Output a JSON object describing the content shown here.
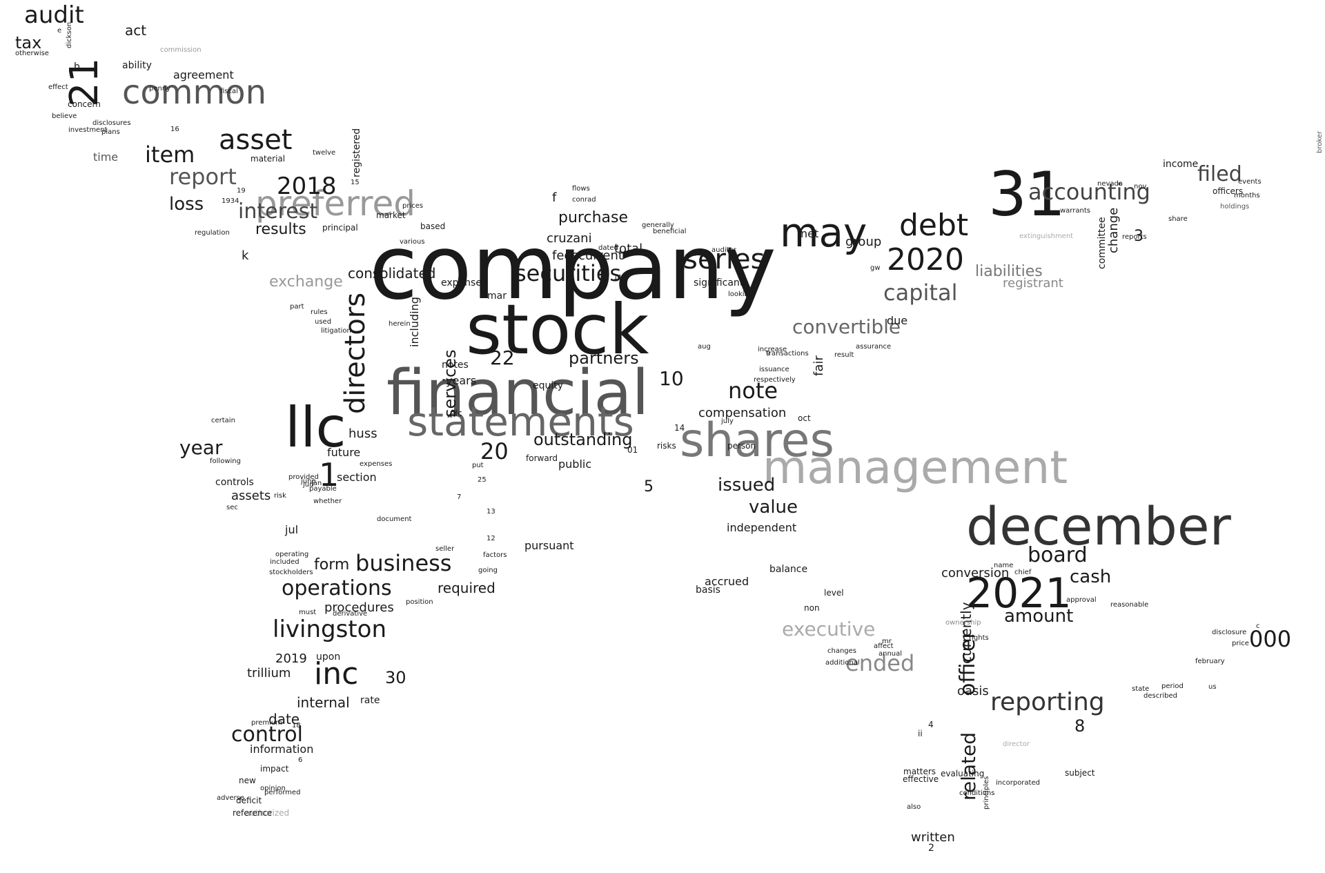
{
  "words": [
    {
      "text": "company",
      "color": "#1a1a1a"
    },
    {
      "text": "stock",
      "color": "#1a1a1a"
    },
    {
      "text": "financial",
      "color": "#555555"
    },
    {
      "text": "statements",
      "color": "#666666"
    },
    {
      "text": "shares",
      "color": "#777777"
    },
    {
      "text": "management",
      "color": "#aaaaaa"
    },
    {
      "text": "december",
      "color": "#333333"
    },
    {
      "text": "llc",
      "color": "#1a1a1a"
    },
    {
      "text": "31",
      "color": "#1a1a1a"
    },
    {
      "text": "21",
      "color": "#1a1a1a"
    },
    {
      "text": "2021",
      "color": "#1a1a1a"
    },
    {
      "text": "may",
      "color": "#1a1a1a"
    },
    {
      "text": "preferred",
      "color": "#999999"
    },
    {
      "text": "common",
      "color": "#555555"
    },
    {
      "text": "directors",
      "color": "#1a1a1a"
    },
    {
      "text": "debt",
      "color": "#1a1a1a"
    },
    {
      "text": "2020",
      "color": "#1a1a1a"
    },
    {
      "text": "series",
      "color": "#1a1a1a"
    },
    {
      "text": "securities",
      "color": "#1a1a1a"
    },
    {
      "text": "inc",
      "color": "#1a1a1a"
    },
    {
      "text": "livingston",
      "color": "#1a1a1a"
    },
    {
      "text": "asset",
      "color": "#1a1a1a"
    },
    {
      "text": "accounting",
      "color": "#444444"
    },
    {
      "text": "note",
      "color": "#1a1a1a"
    },
    {
      "text": "business",
      "color": "#1a1a1a"
    },
    {
      "text": "operations",
      "color": "#1a1a1a"
    },
    {
      "text": "reporting",
      "color": "#333333"
    },
    {
      "text": "capital",
      "color": "#555555"
    },
    {
      "text": "convertible",
      "color": "#666666"
    },
    {
      "text": "executive",
      "color": "#aaaaaa"
    },
    {
      "text": "ended",
      "color": "#888888"
    },
    {
      "text": "control",
      "color": "#1a1a1a"
    },
    {
      "text": "item",
      "color": "#1a1a1a"
    },
    {
      "text": "report",
      "color": "#555555"
    },
    {
      "text": "2018",
      "color": "#1a1a1a"
    },
    {
      "text": "interest",
      "color": "#444444"
    },
    {
      "text": "audit",
      "color": "#1a1a1a"
    },
    {
      "text": "tax",
      "color": "#1a1a1a"
    },
    {
      "text": "filed",
      "color": "#444444"
    },
    {
      "text": "board",
      "color": "#1a1a1a"
    },
    {
      "text": "outstanding",
      "color": "#1a1a1a"
    },
    {
      "text": "officer",
      "color": "#1a1a1a"
    },
    {
      "text": "related",
      "color": "#1a1a1a"
    },
    {
      "text": "services",
      "color": "#1a1a1a"
    },
    {
      "text": "000",
      "color": "#1a1a1a"
    },
    {
      "text": "amount",
      "color": "#1a1a1a"
    },
    {
      "text": "cash",
      "color": "#1a1a1a"
    },
    {
      "text": "issued",
      "color": "#1a1a1a"
    },
    {
      "text": "value",
      "color": "#1a1a1a"
    },
    {
      "text": "year",
      "color": "#1a1a1a"
    },
    {
      "text": "1",
      "color": "#1a1a1a"
    },
    {
      "text": "20",
      "color": "#1a1a1a"
    },
    {
      "text": "22",
      "color": "#1a1a1a"
    },
    {
      "text": "10",
      "color": "#1a1a1a"
    },
    {
      "text": "partners",
      "color": "#1a1a1a"
    },
    {
      "text": "loss",
      "color": "#1a1a1a"
    },
    {
      "text": "liabilities",
      "color": "#777777"
    },
    {
      "text": "purchase",
      "color": "#1a1a1a"
    },
    {
      "text": "exchange",
      "color": "#999999"
    },
    {
      "text": "results",
      "color": "#1a1a1a"
    },
    {
      "text": "consolidated",
      "color": "#1a1a1a"
    },
    {
      "text": "form",
      "color": "#1a1a1a"
    },
    {
      "text": "required",
      "color": "#1a1a1a"
    },
    {
      "text": "procedures",
      "color": "#1a1a1a"
    },
    {
      "text": "2019",
      "color": "#1a1a1a"
    },
    {
      "text": "trillium",
      "color": "#1a1a1a"
    },
    {
      "text": "internal",
      "color": "#1a1a1a"
    },
    {
      "text": "date",
      "color": "#1a1a1a"
    },
    {
      "text": "information",
      "color": "#1a1a1a"
    },
    {
      "text": "30",
      "color": "#1a1a1a"
    },
    {
      "text": "compensation",
      "color": "#1a1a1a"
    },
    {
      "text": "fair",
      "color": "#1a1a1a"
    },
    {
      "text": "currently",
      "color": "#1a1a1a"
    },
    {
      "text": "conversion",
      "color": "#1a1a1a"
    },
    {
      "text": "oasis",
      "color": "#1a1a1a"
    },
    {
      "text": "8",
      "color": "#1a1a1a"
    },
    {
      "text": "cruzani",
      "color": "#1a1a1a"
    },
    {
      "text": "current",
      "color": "#1a1a1a"
    },
    {
      "text": "total",
      "color": "#1a1a1a"
    },
    {
      "text": "fees",
      "color": "#1a1a1a"
    },
    {
      "text": "group",
      "color": "#1a1a1a"
    },
    {
      "text": "net",
      "color": "#1a1a1a"
    },
    {
      "text": "registrant",
      "color": "#888888"
    },
    {
      "text": "3",
      "color": "#1a1a1a"
    },
    {
      "text": "committee",
      "color": "#1a1a1a"
    },
    {
      "text": "change",
      "color": "#1a1a1a"
    },
    {
      "text": "income",
      "color": "#1a1a1a"
    },
    {
      "text": "officers",
      "color": "#1a1a1a"
    },
    {
      "text": "act",
      "color": "#1a1a1a"
    },
    {
      "text": "agreement",
      "color": "#1a1a1a"
    },
    {
      "text": "ability",
      "color": "#1a1a1a"
    },
    {
      "text": "b",
      "color": "#1a1a1a"
    },
    {
      "text": "time",
      "color": "#555555"
    },
    {
      "text": "material",
      "color": "#1a1a1a"
    },
    {
      "text": "k",
      "color": "#1a1a1a"
    },
    {
      "text": "f",
      "color": "#1a1a1a"
    },
    {
      "text": "huss",
      "color": "#1a1a1a"
    },
    {
      "text": "future",
      "color": "#1a1a1a"
    },
    {
      "text": "section",
      "color": "#1a1a1a"
    },
    {
      "text": "including",
      "color": "#1a1a1a"
    },
    {
      "text": "years",
      "color": "#1a1a1a"
    },
    {
      "text": "notes",
      "color": "#1a1a1a"
    },
    {
      "text": "equity",
      "color": "#1a1a1a"
    },
    {
      "text": "public",
      "color": "#1a1a1a"
    },
    {
      "text": "5",
      "color": "#1a1a1a"
    },
    {
      "text": "independent",
      "color": "#1a1a1a"
    },
    {
      "text": "pursuant",
      "color": "#1a1a1a"
    },
    {
      "text": "balance",
      "color": "#1a1a1a"
    },
    {
      "text": "accrued",
      "color": "#1a1a1a"
    },
    {
      "text": "basis",
      "color": "#1a1a1a"
    },
    {
      "text": "due",
      "color": "#1a1a1a"
    },
    {
      "text": "significant",
      "color": "#1a1a1a"
    },
    {
      "text": "expense",
      "color": "#1a1a1a"
    },
    {
      "text": "mar",
      "color": "#1a1a1a"
    },
    {
      "text": "assets",
      "color": "#1a1a1a"
    },
    {
      "text": "controls",
      "color": "#1a1a1a"
    },
    {
      "text": "jul",
      "color": "#1a1a1a"
    },
    {
      "text": "upon",
      "color": "#1a1a1a"
    },
    {
      "text": "rate",
      "color": "#1a1a1a"
    },
    {
      "text": "impact",
      "color": "#1a1a1a"
    },
    {
      "text": "new",
      "color": "#1a1a1a"
    },
    {
      "text": "deficit",
      "color": "#1a1a1a"
    },
    {
      "text": "authorized",
      "color": "#aaaaaa"
    },
    {
      "text": "reference",
      "color": "#1a1a1a"
    },
    {
      "text": "registered",
      "color": "#1a1a1a"
    },
    {
      "text": "market",
      "color": "#1a1a1a"
    },
    {
      "text": "based",
      "color": "#1a1a1a"
    },
    {
      "text": "principal",
      "color": "#1a1a1a"
    },
    {
      "text": "concern",
      "color": "#1a1a1a"
    },
    {
      "text": "disclosures",
      "color": "#1a1a1a"
    },
    {
      "text": "penny",
      "color": "#1a1a1a"
    },
    {
      "text": "fiscal",
      "color": "#1a1a1a"
    },
    {
      "text": "commission",
      "color": "#999999"
    },
    {
      "text": "part",
      "color": "#1a1a1a"
    },
    {
      "text": "rules",
      "color": "#1a1a1a"
    },
    {
      "text": "used",
      "color": "#1a1a1a"
    },
    {
      "text": "litigation",
      "color": "#1a1a1a"
    },
    {
      "text": "herein",
      "color": "#1a1a1a"
    },
    {
      "text": "plc",
      "color": "#1a1a1a"
    },
    {
      "text": "forward",
      "color": "#1a1a1a"
    },
    {
      "text": "risks",
      "color": "#1a1a1a"
    },
    {
      "text": "01",
      "color": "#1a1a1a"
    },
    {
      "text": "14",
      "color": "#1a1a1a"
    },
    {
      "text": "july",
      "color": "#1a1a1a"
    },
    {
      "text": "person",
      "color": "#1a1a1a"
    },
    {
      "text": "oct",
      "color": "#1a1a1a"
    },
    {
      "text": "transactions",
      "color": "#1a1a1a"
    },
    {
      "text": "aug",
      "color": "#1a1a1a"
    },
    {
      "text": "issuance",
      "color": "#1a1a1a"
    },
    {
      "text": "respectively",
      "color": "#1a1a1a"
    },
    {
      "text": "increase",
      "color": "#1a1a1a"
    },
    {
      "text": "assurance",
      "color": "#1a1a1a"
    },
    {
      "text": "result",
      "color": "#1a1a1a"
    },
    {
      "text": "extinguishment",
      "color": "#aaaaaa"
    },
    {
      "text": "warrants",
      "color": "#1a1a1a"
    },
    {
      "text": "reports",
      "color": "#1a1a1a"
    },
    {
      "text": "nov",
      "color": "#1a1a1a"
    },
    {
      "text": "nevada",
      "color": "#1a1a1a"
    },
    {
      "text": "share",
      "color": "#1a1a1a"
    },
    {
      "text": "events",
      "color": "#1a1a1a"
    },
    {
      "text": "holdings",
      "color": "#555555"
    },
    {
      "text": "broker",
      "color": "#555555"
    },
    {
      "text": "months",
      "color": "#1a1a1a"
    },
    {
      "text": "name",
      "color": "#1a1a1a"
    },
    {
      "text": "chief",
      "color": "#1a1a1a"
    },
    {
      "text": "approval",
      "color": "#1a1a1a"
    },
    {
      "text": "reasonable",
      "color": "#1a1a1a"
    },
    {
      "text": "c",
      "color": "#1a1a1a"
    },
    {
      "text": "disclosure",
      "color": "#1a1a1a"
    },
    {
      "text": "price",
      "color": "#1a1a1a"
    },
    {
      "text": "february",
      "color": "#1a1a1a"
    },
    {
      "text": "state",
      "color": "#1a1a1a"
    },
    {
      "text": "period",
      "color": "#1a1a1a"
    },
    {
      "text": "described",
      "color": "#1a1a1a"
    },
    {
      "text": "us",
      "color": "#1a1a1a"
    },
    {
      "text": "ownership",
      "color": "#888888"
    },
    {
      "text": "rights",
      "color": "#1a1a1a"
    },
    {
      "text": "affect",
      "color": "#1a1a1a"
    },
    {
      "text": "mr",
      "color": "#1a1a1a"
    },
    {
      "text": "annual",
      "color": "#1a1a1a"
    },
    {
      "text": "changes",
      "color": "#1a1a1a"
    },
    {
      "text": "additional",
      "color": "#1a1a1a"
    },
    {
      "text": "non",
      "color": "#1a1a1a"
    },
    {
      "text": "level",
      "color": "#1a1a1a"
    },
    {
      "text": "4",
      "color": "#1a1a1a"
    },
    {
      "text": "ii",
      "color": "#1a1a1a"
    },
    {
      "text": "matters",
      "color": "#1a1a1a"
    },
    {
      "text": "effective",
      "color": "#1a1a1a"
    },
    {
      "text": "evaluating",
      "color": "#1a1a1a"
    },
    {
      "text": "incorporated",
      "color": "#1a1a1a"
    },
    {
      "text": "conditions",
      "color": "#1a1a1a"
    },
    {
      "text": "principles",
      "color": "#1a1a1a"
    },
    {
      "text": "also",
      "color": "#1a1a1a"
    },
    {
      "text": "written",
      "color": "#1a1a1a"
    },
    {
      "text": "2",
      "color": "#1a1a1a"
    },
    {
      "text": "subject",
      "color": "#1a1a1a"
    },
    {
      "text": "director",
      "color": "#aaaaaa"
    },
    {
      "text": "e",
      "color": "#1a1a1a"
    },
    {
      "text": "otherwise",
      "color": "#1a1a1a"
    },
    {
      "text": "dickson",
      "color": "#1a1a1a"
    },
    {
      "text": "effect",
      "color": "#1a1a1a"
    },
    {
      "text": "believe",
      "color": "#1a1a1a"
    },
    {
      "text": "plans",
      "color": "#1a1a1a"
    },
    {
      "text": "investment",
      "color": "#1a1a1a"
    },
    {
      "text": "16",
      "color": "#1a1a1a"
    },
    {
      "text": "twelve",
      "color": "#1a1a1a"
    },
    {
      "text": "15",
      "color": "#1a1a1a"
    },
    {
      "text": "19",
      "color": "#1a1a1a"
    },
    {
      "text": "1934",
      "color": "#1a1a1a"
    },
    {
      "text": "regulation",
      "color": "#1a1a1a"
    },
    {
      "text": "prices",
      "color": "#1a1a1a"
    },
    {
      "text": "various",
      "color": "#1a1a1a"
    },
    {
      "text": "flows",
      "color": "#1a1a1a"
    },
    {
      "text": "conrad",
      "color": "#1a1a1a"
    },
    {
      "text": "beneficial",
      "color": "#1a1a1a"
    },
    {
      "text": "dated",
      "color": "#1a1a1a"
    },
    {
      "text": "auditor",
      "color": "#1a1a1a"
    },
    {
      "text": "looking",
      "color": "#1a1a1a"
    },
    {
      "text": "1p",
      "color": "#1a1a1a"
    },
    {
      "text": "gw",
      "color": "#1a1a1a"
    },
    {
      "text": "certain",
      "color": "#1a1a1a"
    },
    {
      "text": "following",
      "color": "#1a1a1a"
    },
    {
      "text": "sec",
      "color": "#1a1a1a"
    },
    {
      "text": "whether",
      "color": "#1a1a1a"
    },
    {
      "text": "risk",
      "color": "#1a1a1a"
    },
    {
      "text": "jan",
      "color": "#1a1a1a"
    },
    {
      "text": "jun",
      "color": "#1a1a1a"
    },
    {
      "text": "june",
      "color": "#1a1a1a"
    },
    {
      "text": "provided",
      "color": "#1a1a1a"
    },
    {
      "text": "payable",
      "color": "#1a1a1a"
    },
    {
      "text": "operating",
      "color": "#1a1a1a"
    },
    {
      "text": "included",
      "color": "#1a1a1a"
    },
    {
      "text": "stockholders",
      "color": "#1a1a1a"
    },
    {
      "text": "premium",
      "color": "#1a1a1a"
    },
    {
      "text": "opinion",
      "color": "#1a1a1a"
    },
    {
      "text": "adverse",
      "color": "#1a1a1a"
    },
    {
      "text": "performed",
      "color": "#1a1a1a"
    },
    {
      "text": "6",
      "color": "#1a1a1a"
    },
    {
      "text": "18",
      "color": "#1a1a1a"
    },
    {
      "text": "position",
      "color": "#1a1a1a"
    },
    {
      "text": "derivative",
      "color": "#1a1a1a"
    },
    {
      "text": "must",
      "color": "#1a1a1a"
    },
    {
      "text": "expenses",
      "color": "#1a1a1a"
    },
    {
      "text": "document",
      "color": "#1a1a1a"
    },
    {
      "text": "seller",
      "color": "#1a1a1a"
    },
    {
      "text": "going",
      "color": "#1a1a1a"
    },
    {
      "text": "factors",
      "color": "#1a1a1a"
    },
    {
      "text": "13",
      "color": "#1a1a1a"
    },
    {
      "text": "12",
      "color": "#1a1a1a"
    },
    {
      "text": "put",
      "color": "#1a1a1a"
    },
    {
      "text": "25",
      "color": "#1a1a1a"
    },
    {
      "text": "7",
      "color": "#1a1a1a"
    },
    {
      "text": "9",
      "color": "#1a1a1a"
    },
    {
      "text": "11",
      "color": "#1a1a1a"
    },
    {
      "text": "generally",
      "color": "#1a1a1a"
    }
  ]
}
